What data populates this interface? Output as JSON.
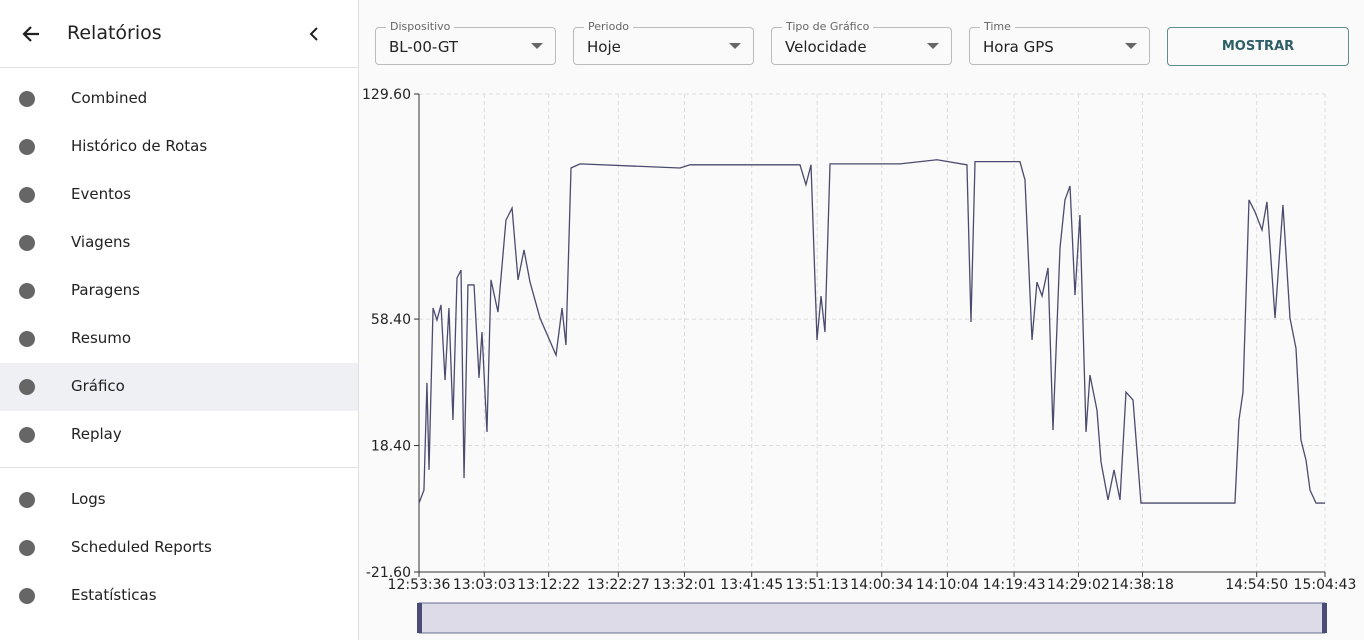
{
  "sidebar": {
    "title": "Relatórios",
    "items": [
      "Combined",
      "Histórico de Rotas",
      "Eventos",
      "Viagens",
      "Paragens",
      "Resumo",
      "Gráfico",
      "Replay"
    ],
    "items2": [
      "Logs",
      "Scheduled Reports",
      "Estatísticas"
    ]
  },
  "filters": [
    {
      "label": "Dispositivo",
      "value": "BL-00-GT"
    },
    {
      "label": "Periodo",
      "value": "Hoje"
    },
    {
      "label": "Tipo de Gráfico",
      "value": "Velocidade"
    },
    {
      "label": "Time",
      "value": "Hora GPS"
    }
  ],
  "button": "MOSTRAR",
  "chart_data": {
    "type": "line",
    "x": [
      "12:53:36",
      "12:54:19",
      "12:54:45",
      "12:55:03",
      "12:55:38",
      "12:56:12",
      "12:56:47",
      "12:57:22",
      "12:57:56",
      "12:58:31",
      "12:59:06",
      "12:59:41",
      "13:00:07",
      "13:00:41",
      "13:01:34",
      "13:02:17",
      "13:02:43",
      "13:03:26",
      "13:04:01",
      "13:05:02",
      "13:06:11",
      "13:07:04",
      "13:07:56",
      "13:08:48",
      "13:09:40",
      "13:11:07",
      "13:13:26",
      "13:14:18",
      "13:14:52",
      "13:15:36",
      "13:16:54",
      "13:31:22",
      "13:32:49",
      "13:48:44",
      "13:49:36",
      "13:50:20",
      "13:51:12",
      "13:51:47",
      "13:52:21",
      "13:53:05",
      "14:03:13",
      "14:08:34",
      "14:12:54",
      "14:13:29",
      "14:14:04",
      "14:20:34",
      "14:21:18",
      "14:22:19",
      "14:23:02",
      "14:23:46",
      "14:24:38",
      "14:25:21",
      "14:26:22",
      "14:27:05",
      "14:27:49",
      "14:28:32",
      "14:29:15",
      "14:30:08",
      "14:30:42",
      "14:31:43",
      "14:32:18",
      "14:33:19",
      "14:34:11",
      "14:35:03",
      "14:35:55",
      "14:36:56",
      "14:38:05",
      "14:51:41",
      "14:52:16",
      "14:52:51",
      "14:53:43",
      "14:54:35",
      "14:55:36",
      "14:56:19",
      "14:57:29",
      "14:58:38",
      "14:59:39",
      "15:00:31",
      "15:01:14",
      "15:01:58",
      "15:02:33",
      "15:03:25",
      "15:04:43"
    ],
    "series": [
      {
        "color": "#4b4b6e",
        "values": [
          0.2,
          4.3,
          38.2,
          10.7,
          61.9,
          58.1,
          62.9,
          39.1,
          61.9,
          26.5,
          71.4,
          73.9,
          8.1,
          69.2,
          69.2,
          39.8,
          54.3,
          22.7,
          70.8,
          60.6,
          89.7,
          93.5,
          70.8,
          80.3,
          70.1,
          58.7,
          47,
          61.9,
          50.2,
          106.2,
          107.5,
          106.2,
          107.2,
          107.2,
          100.9,
          107.2,
          51.8,
          65.7,
          54.3,
          107.5,
          107.5,
          108.8,
          107.2,
          57.5,
          108.2,
          108.2,
          102.4,
          51.8,
          70.1,
          65.7,
          74.6,
          23.3,
          80.9,
          96.1,
          100.5,
          66,
          91.3,
          22.7,
          40.7,
          29.6,
          13.2,
          1.2,
          10.7,
          1.2,
          35.3,
          32.8,
          0.2,
          0.2,
          26.5,
          35.3,
          96.1,
          92.3,
          86.6,
          95.5,
          58.7,
          94.5,
          58.7,
          49.2,
          20.2,
          13.8,
          4.3,
          0.2,
          0.2
        ]
      }
    ],
    "xlim": [
      "12:53:36",
      "15:04:43"
    ],
    "xticks": [
      "12:53:36",
      "13:03:03",
      "13:12:22",
      "13:22:27",
      "13:32:01",
      "13:41:45",
      "13:51:13",
      "14:00:34",
      "14:10:04",
      "14:19:43",
      "14:29:02",
      "14:38:18",
      "14:54:50",
      "15:04:43"
    ],
    "ylim": [
      -21.6,
      129.6
    ],
    "yticks": [
      {
        "value": -21.6,
        "label": "-21.60"
      },
      {
        "value": 18.4,
        "label": "18.40"
      },
      {
        "value": 58.4,
        "label": "58.40"
      },
      {
        "value": 129.6,
        "label": "129.60"
      }
    ],
    "grid": true
  }
}
